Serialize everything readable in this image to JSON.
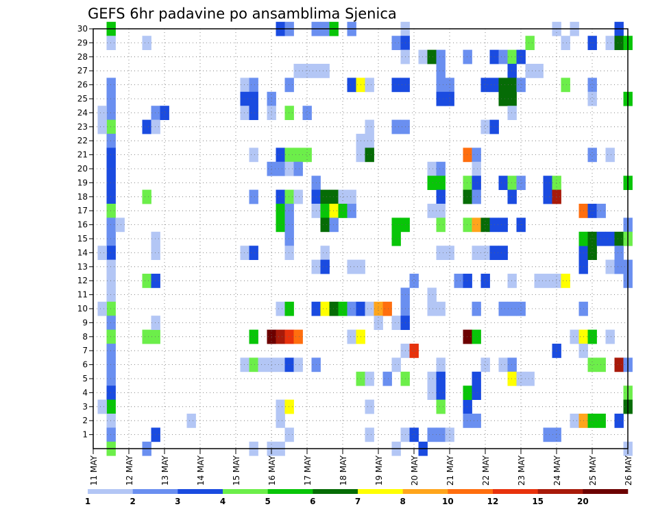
{
  "chart_data": {
    "type": "heatmap",
    "title": "GEFS 6hr padavine po ansamblima Sjenica",
    "x_tick_labels": [
      "11 MAY",
      "12 MAY",
      "13 MAY",
      "14 MAY",
      "15 MAY",
      "16 MAY",
      "17 MAY",
      "18 MAY",
      "19 MAY",
      "20 MAY",
      "21 MAY",
      "22 MAY",
      "23 MAY",
      "24 MAY",
      "25 MAY",
      "26 MAY"
    ],
    "x_unit": "6-hour steps from 11 MAY 00z",
    "xlim": [
      0,
      60
    ],
    "y_tick_labels": [
      1,
      2,
      3,
      4,
      5,
      6,
      7,
      8,
      9,
      10,
      11,
      12,
      13,
      14,
      15,
      16,
      17,
      18,
      19,
      20,
      21,
      22,
      23,
      24,
      25,
      26,
      27,
      28,
      29,
      30
    ],
    "ylim": [
      0,
      30
    ],
    "grid": true,
    "colorbar": {
      "labels": [
        "1",
        "2",
        "3",
        "4",
        "5",
        "6",
        "7",
        "8",
        "10",
        "12",
        "15",
        "20"
      ],
      "colors": [
        "#b3c6f5",
        "#6a8ff0",
        "#1a4be0",
        "#6cee4a",
        "#08c508",
        "#066c06",
        "#ffff00",
        "#ffa51c",
        "#ff6e0e",
        "#e8320c",
        "#a81a0a",
        "#6c0000"
      ]
    },
    "cells": [
      [
        2,
        30,
        4
      ],
      [
        2,
        29,
        0
      ],
      [
        2,
        26,
        1
      ],
      [
        2,
        25,
        1
      ],
      [
        2,
        24,
        1
      ],
      [
        2,
        23,
        3
      ],
      [
        2,
        22,
        1
      ],
      [
        2,
        21,
        2
      ],
      [
        2,
        20,
        2
      ],
      [
        2,
        19,
        2
      ],
      [
        2,
        18,
        2
      ],
      [
        2,
        17,
        3
      ],
      [
        2,
        16,
        1
      ],
      [
        2,
        15,
        1
      ],
      [
        2,
        14,
        2
      ],
      [
        2,
        13,
        0
      ],
      [
        2,
        12,
        0
      ],
      [
        2,
        11,
        0
      ],
      [
        2,
        10,
        3
      ],
      [
        2,
        9,
        1
      ],
      [
        2,
        8,
        3
      ],
      [
        2,
        7,
        1
      ],
      [
        2,
        6,
        1
      ],
      [
        2,
        5,
        1
      ],
      [
        2,
        4,
        2
      ],
      [
        2,
        3,
        4
      ],
      [
        2,
        2,
        0
      ],
      [
        2,
        1,
        1
      ],
      [
        2,
        0,
        3
      ],
      [
        1,
        24,
        0
      ],
      [
        1,
        23,
        0
      ],
      [
        1,
        14,
        0
      ],
      [
        1,
        10,
        0
      ],
      [
        1,
        3,
        0
      ],
      [
        3,
        16,
        0
      ],
      [
        6,
        29,
        0
      ],
      [
        6,
        23,
        2
      ],
      [
        6,
        18,
        3
      ],
      [
        6,
        12,
        3
      ],
      [
        6,
        8,
        3
      ],
      [
        6,
        0,
        1
      ],
      [
        7,
        24,
        1
      ],
      [
        7,
        23,
        0
      ],
      [
        7,
        15,
        0
      ],
      [
        7,
        14,
        0
      ],
      [
        7,
        12,
        2
      ],
      [
        7,
        8,
        3
      ],
      [
        7,
        1,
        2
      ],
      [
        7,
        9,
        0
      ],
      [
        8,
        24,
        2
      ],
      [
        11,
        2,
        0
      ],
      [
        17,
        26,
        0
      ],
      [
        17,
        25,
        2
      ],
      [
        17,
        24,
        0
      ],
      [
        17,
        14,
        0
      ],
      [
        17,
        6,
        0
      ],
      [
        18,
        26,
        1
      ],
      [
        18,
        25,
        2
      ],
      [
        18,
        24,
        2
      ],
      [
        18,
        21,
        0
      ],
      [
        18,
        18,
        1
      ],
      [
        18,
        14,
        2
      ],
      [
        18,
        8,
        4
      ],
      [
        18,
        6,
        3
      ],
      [
        18,
        0,
        0
      ],
      [
        19,
        6,
        0
      ],
      [
        20,
        25,
        1
      ],
      [
        20,
        24,
        0
      ],
      [
        20,
        20,
        1
      ],
      [
        20,
        6,
        0
      ],
      [
        20,
        8,
        11
      ],
      [
        20,
        0,
        0
      ],
      [
        21,
        30,
        2
      ],
      [
        21,
        21,
        2
      ],
      [
        21,
        20,
        1
      ],
      [
        21,
        18,
        2
      ],
      [
        21,
        17,
        4
      ],
      [
        21,
        16,
        4
      ],
      [
        21,
        10,
        0
      ],
      [
        21,
        8,
        10
      ],
      [
        21,
        6,
        0
      ],
      [
        21,
        3,
        0
      ],
      [
        21,
        2,
        0
      ],
      [
        21,
        0,
        0
      ],
      [
        22,
        30,
        1
      ],
      [
        22,
        26,
        1
      ],
      [
        22,
        24,
        3
      ],
      [
        22,
        21,
        3
      ],
      [
        22,
        20,
        0
      ],
      [
        22,
        18,
        3
      ],
      [
        22,
        17,
        1
      ],
      [
        22,
        16,
        1
      ],
      [
        22,
        15,
        1
      ],
      [
        22,
        14,
        0
      ],
      [
        22,
        10,
        4
      ],
      [
        22,
        8,
        9
      ],
      [
        22,
        6,
        2
      ],
      [
        22,
        3,
        6
      ],
      [
        22,
        1,
        0
      ],
      [
        23,
        27,
        0
      ],
      [
        23,
        21,
        3
      ],
      [
        23,
        20,
        1
      ],
      [
        23,
        18,
        0
      ],
      [
        23,
        8,
        8
      ],
      [
        23,
        6,
        0
      ],
      [
        24,
        27,
        0
      ],
      [
        24,
        21,
        3
      ],
      [
        24,
        24,
        1
      ],
      [
        25,
        30,
        1
      ],
      [
        25,
        27,
        0
      ],
      [
        25,
        19,
        1
      ],
      [
        25,
        18,
        2
      ],
      [
        25,
        17,
        0
      ],
      [
        25,
        13,
        0
      ],
      [
        25,
        10,
        2
      ],
      [
        25,
        6,
        1
      ],
      [
        26,
        30,
        1
      ],
      [
        26,
        18,
        5
      ],
      [
        26,
        17,
        4
      ],
      [
        26,
        16,
        5
      ],
      [
        26,
        14,
        0
      ],
      [
        26,
        13,
        2
      ],
      [
        26,
        10,
        6
      ],
      [
        26,
        27,
        0
      ],
      [
        27,
        30,
        4
      ],
      [
        27,
        18,
        5
      ],
      [
        27,
        17,
        6
      ],
      [
        27,
        10,
        5
      ],
      [
        27,
        16,
        1
      ],
      [
        28,
        18,
        0
      ],
      [
        28,
        17,
        4
      ],
      [
        28,
        10,
        4
      ],
      [
        29,
        30,
        1
      ],
      [
        29,
        18,
        0
      ],
      [
        29,
        17,
        1
      ],
      [
        29,
        13,
        0
      ],
      [
        29,
        10,
        1
      ],
      [
        29,
        8,
        0
      ],
      [
        29,
        26,
        2
      ],
      [
        30,
        26,
        6
      ],
      [
        30,
        22,
        0
      ],
      [
        30,
        21,
        0
      ],
      [
        30,
        8,
        6
      ],
      [
        30,
        10,
        2
      ],
      [
        30,
        5,
        3
      ],
      [
        30,
        13,
        0
      ],
      [
        31,
        26,
        0
      ],
      [
        31,
        23,
        0
      ],
      [
        31,
        22,
        0
      ],
      [
        31,
        21,
        5
      ],
      [
        31,
        10,
        0
      ],
      [
        31,
        5,
        0
      ],
      [
        31,
        1,
        0
      ],
      [
        31,
        3,
        0
      ],
      [
        32,
        10,
        7
      ],
      [
        32,
        9,
        0
      ],
      [
        33,
        10,
        8
      ],
      [
        33,
        5,
        1
      ],
      [
        34,
        29,
        1
      ],
      [
        34,
        26,
        2
      ],
      [
        34,
        23,
        1
      ],
      [
        34,
        16,
        4
      ],
      [
        34,
        15,
        4
      ],
      [
        34,
        9,
        0
      ],
      [
        34,
        6,
        0
      ],
      [
        34,
        0,
        0
      ],
      [
        35,
        30,
        0
      ],
      [
        35,
        29,
        2
      ],
      [
        35,
        28,
        0
      ],
      [
        35,
        26,
        2
      ],
      [
        35,
        23,
        1
      ],
      [
        35,
        16,
        4
      ],
      [
        35,
        11,
        1
      ],
      [
        35,
        10,
        1
      ],
      [
        35,
        9,
        2
      ],
      [
        35,
        5,
        3
      ],
      [
        35,
        7,
        0
      ],
      [
        35,
        1,
        0
      ],
      [
        36,
        12,
        1
      ],
      [
        36,
        7,
        9
      ],
      [
        36,
        1,
        2
      ],
      [
        37,
        28,
        0
      ],
      [
        37,
        0,
        2
      ],
      [
        38,
        28,
        5
      ],
      [
        38,
        20,
        0
      ],
      [
        38,
        19,
        4
      ],
      [
        38,
        17,
        0
      ],
      [
        38,
        11,
        0
      ],
      [
        38,
        10,
        0
      ],
      [
        38,
        1,
        1
      ],
      [
        38,
        4,
        0
      ],
      [
        38,
        5,
        0
      ],
      [
        39,
        28,
        1
      ],
      [
        39,
        27,
        1
      ],
      [
        39,
        26,
        1
      ],
      [
        39,
        25,
        2
      ],
      [
        39,
        20,
        1
      ],
      [
        39,
        19,
        4
      ],
      [
        39,
        18,
        2
      ],
      [
        39,
        17,
        0
      ],
      [
        39,
        16,
        3
      ],
      [
        39,
        14,
        0
      ],
      [
        39,
        10,
        0
      ],
      [
        39,
        6,
        0
      ],
      [
        39,
        5,
        2
      ],
      [
        39,
        4,
        2
      ],
      [
        39,
        3,
        3
      ],
      [
        39,
        1,
        1
      ],
      [
        40,
        26,
        1
      ],
      [
        40,
        25,
        2
      ],
      [
        40,
        14,
        0
      ],
      [
        40,
        1,
        0
      ],
      [
        41,
        12,
        1
      ],
      [
        42,
        28,
        1
      ],
      [
        42,
        21,
        8
      ],
      [
        42,
        19,
        3
      ],
      [
        42,
        18,
        5
      ],
      [
        42,
        16,
        3
      ],
      [
        42,
        12,
        2
      ],
      [
        42,
        8,
        11
      ],
      [
        42,
        3,
        2
      ],
      [
        42,
        4,
        4
      ],
      [
        42,
        2,
        1
      ],
      [
        43,
        21,
        1
      ],
      [
        43,
        20,
        0
      ],
      [
        43,
        19,
        2
      ],
      [
        43,
        18,
        1
      ],
      [
        43,
        16,
        7
      ],
      [
        43,
        14,
        0
      ],
      [
        43,
        10,
        1
      ],
      [
        43,
        8,
        4
      ],
      [
        43,
        5,
        2
      ],
      [
        43,
        4,
        2
      ],
      [
        43,
        2,
        1
      ],
      [
        44,
        26,
        2
      ],
      [
        44,
        23,
        0
      ],
      [
        44,
        16,
        5
      ],
      [
        44,
        14,
        0
      ],
      [
        44,
        12,
        2
      ],
      [
        44,
        6,
        0
      ],
      [
        45,
        28,
        2
      ],
      [
        45,
        26,
        2
      ],
      [
        45,
        23,
        2
      ],
      [
        45,
        16,
        2
      ],
      [
        45,
        14,
        2
      ],
      [
        46,
        28,
        1
      ],
      [
        46,
        26,
        5
      ],
      [
        46,
        25,
        5
      ],
      [
        46,
        19,
        2
      ],
      [
        46,
        16,
        2
      ],
      [
        46,
        10,
        1
      ],
      [
        46,
        6,
        0
      ],
      [
        46,
        14,
        2
      ],
      [
        47,
        28,
        3
      ],
      [
        47,
        27,
        2
      ],
      [
        47,
        26,
        5
      ],
      [
        47,
        25,
        5
      ],
      [
        47,
        24,
        0
      ],
      [
        47,
        19,
        3
      ],
      [
        47,
        18,
        2
      ],
      [
        47,
        12,
        0
      ],
      [
        47,
        10,
        1
      ],
      [
        47,
        6,
        1
      ],
      [
        47,
        5,
        6
      ],
      [
        48,
        28,
        2
      ],
      [
        48,
        26,
        1
      ],
      [
        48,
        19,
        1
      ],
      [
        48,
        16,
        2
      ],
      [
        48,
        10,
        1
      ],
      [
        48,
        5,
        0
      ],
      [
        49,
        29,
        3
      ],
      [
        49,
        27,
        0
      ],
      [
        49,
        5,
        0
      ],
      [
        50,
        27,
        0
      ],
      [
        50,
        12,
        0
      ],
      [
        51,
        19,
        2
      ],
      [
        51,
        18,
        2
      ],
      [
        51,
        12,
        0
      ],
      [
        51,
        1,
        1
      ],
      [
        52,
        19,
        3
      ],
      [
        52,
        18,
        10
      ],
      [
        52,
        30,
        0
      ],
      [
        52,
        12,
        0
      ],
      [
        52,
        7,
        2
      ],
      [
        52,
        1,
        1
      ],
      [
        53,
        29,
        0
      ],
      [
        53,
        26,
        3
      ],
      [
        53,
        12,
        6
      ],
      [
        54,
        30,
        0
      ],
      [
        54,
        8,
        0
      ],
      [
        54,
        2,
        0
      ],
      [
        55,
        14,
        2
      ],
      [
        55,
        13,
        2
      ],
      [
        55,
        10,
        1
      ],
      [
        55,
        15,
        4
      ],
      [
        55,
        8,
        6
      ],
      [
        55,
        7,
        0
      ],
      [
        55,
        2,
        7
      ],
      [
        55,
        17,
        8
      ],
      [
        56,
        29,
        2
      ],
      [
        56,
        26,
        1
      ],
      [
        56,
        25,
        0
      ],
      [
        56,
        17,
        2
      ],
      [
        56,
        14,
        5
      ],
      [
        56,
        15,
        5
      ],
      [
        56,
        8,
        4
      ],
      [
        56,
        6,
        3
      ],
      [
        56,
        2,
        4
      ],
      [
        56,
        21,
        1
      ],
      [
        57,
        17,
        1
      ],
      [
        57,
        15,
        2
      ],
      [
        57,
        6,
        3
      ],
      [
        57,
        2,
        4
      ],
      [
        58,
        15,
        2
      ],
      [
        58,
        8,
        0
      ],
      [
        58,
        29,
        0
      ],
      [
        58,
        21,
        0
      ],
      [
        58,
        13,
        0
      ],
      [
        59,
        30,
        2
      ],
      [
        59,
        29,
        5
      ],
      [
        59,
        15,
        5
      ],
      [
        59,
        14,
        1
      ],
      [
        59,
        13,
        1
      ],
      [
        59,
        6,
        10
      ],
      [
        59,
        2,
        2
      ],
      [
        60,
        29,
        4
      ],
      [
        60,
        25,
        4
      ],
      [
        60,
        19,
        4
      ],
      [
        60,
        16,
        1
      ],
      [
        60,
        15,
        3
      ],
      [
        60,
        13,
        1
      ],
      [
        60,
        12,
        1
      ],
      [
        60,
        6,
        1
      ],
      [
        60,
        4,
        3
      ],
      [
        60,
        3,
        5
      ],
      [
        60,
        0,
        0
      ]
    ]
  }
}
